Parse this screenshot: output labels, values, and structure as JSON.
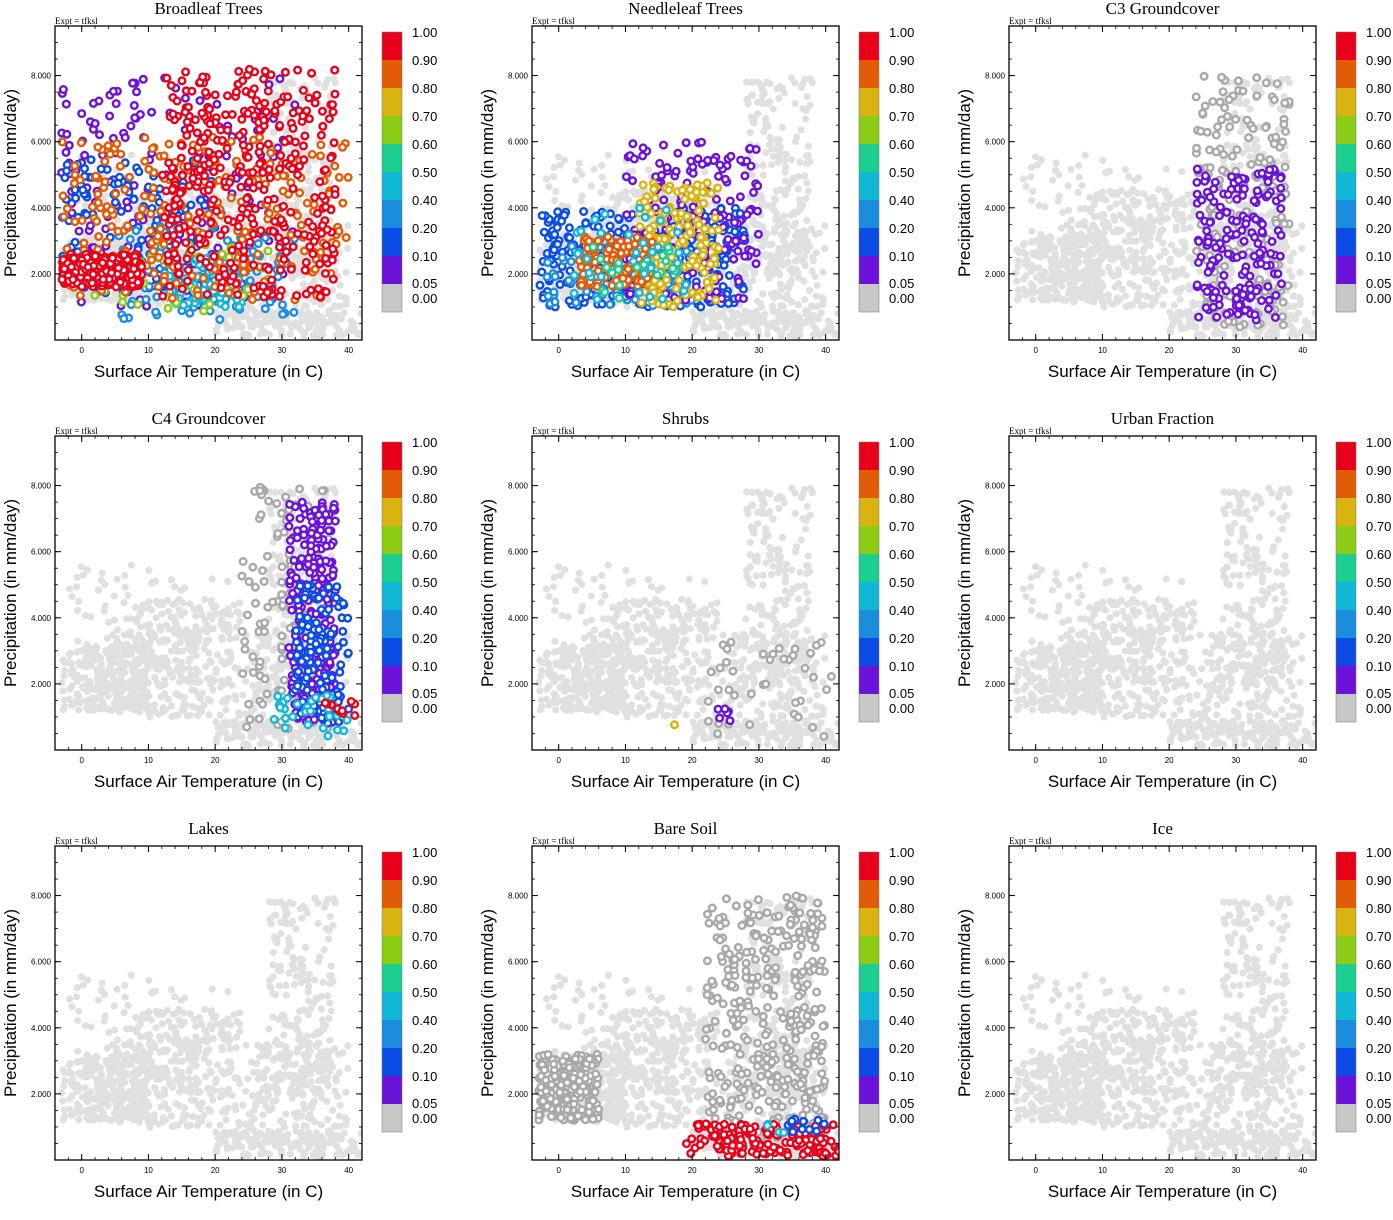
{
  "experiment_label": "Expt = tfksl",
  "chart_data": {
    "type": "scatter",
    "layout": "3x3 grid of scatter panels with colorbars",
    "xlabel": "Surface Air Temperature (in C)",
    "ylabel": "Precipitation (in mm/day)",
    "xlim": [
      -4,
      42
    ],
    "ylim": [
      0,
      9500
    ],
    "xticks": [
      0,
      10,
      20,
      30,
      40
    ],
    "xtick_labels": [
      "0",
      "10",
      "20",
      "30",
      "40"
    ],
    "yticks": [
      2000,
      4000,
      6000,
      8000
    ],
    "ytick_labels": [
      "2.000",
      "4.000",
      "6.000",
      "8.000"
    ],
    "color_levels": [
      "1.00",
      "0.90",
      "0.80",
      "0.70",
      "0.60",
      "0.50",
      "0.40",
      "0.20",
      "0.10",
      "0.05",
      "0.00"
    ],
    "color_scale": [
      "#e8001a",
      "#e25b06",
      "#d9b410",
      "#8ccc14",
      "#1ccf90",
      "#10b8d6",
      "#1a8ddf",
      "#0c4ce6",
      "#6a12d8",
      "#c8c8c8"
    ],
    "background_color": "#e0e0e0",
    "panels": [
      {
        "title": "Broadleaf Trees",
        "groups": [
          {
            "level": 8,
            "x": [
              -3,
              32
            ],
            "y": [
              1000,
              8000
            ],
            "count": 180
          },
          {
            "level": 7,
            "x": [
              -3,
              20
            ],
            "y": [
              1400,
              5500
            ],
            "count": 150
          },
          {
            "level": 6,
            "x": [
              5,
              32
            ],
            "y": [
              600,
              3500
            ],
            "count": 100
          },
          {
            "level": 5,
            "x": [
              13,
              24
            ],
            "y": [
              1000,
              2600
            ],
            "count": 80
          },
          {
            "level": 3,
            "x": [
              -3,
              28
            ],
            "y": [
              800,
              3000
            ],
            "count": 40
          },
          {
            "level": 1,
            "x": [
              -3,
              40
            ],
            "y": [
              1200,
              6200
            ],
            "count": 260
          },
          {
            "level": 0,
            "x": [
              -3,
              9
            ],
            "y": [
              1600,
              2600
            ],
            "count": 240
          },
          {
            "level": 0,
            "x": [
              12,
              38
            ],
            "y": [
              1200,
              8200
            ],
            "count": 380
          }
        ]
      },
      {
        "title": "Needleleaf Trees",
        "groups": [
          {
            "level": 7,
            "x": [
              -3,
              28
            ],
            "y": [
              1000,
              4000
            ],
            "count": 320
          },
          {
            "level": 6,
            "x": [
              -2,
              20
            ],
            "y": [
              1000,
              3000
            ],
            "count": 80
          },
          {
            "level": 8,
            "x": [
              10,
              30
            ],
            "y": [
              1200,
              6000
            ],
            "count": 180
          },
          {
            "level": 2,
            "x": [
              12,
              24
            ],
            "y": [
              1000,
              4800
            ],
            "count": 170
          },
          {
            "level": 1,
            "x": [
              3,
              14
            ],
            "y": [
              1600,
              3200
            ],
            "count": 120
          },
          {
            "level": 5,
            "x": [
              2,
              20
            ],
            "y": [
              1200,
              4000
            ],
            "count": 40
          },
          {
            "level": 4,
            "x": [
              3,
              18
            ],
            "y": [
              1200,
              3000
            ],
            "count": 20
          }
        ]
      },
      {
        "title": "C3 Groundcover",
        "groups": [
          {
            "level": 9,
            "x": [
              24,
              38
            ],
            "y": [
              400,
              8000
            ],
            "count": 200
          },
          {
            "level": 8,
            "x": [
              24,
              37
            ],
            "y": [
              600,
              5200
            ],
            "count": 180
          }
        ]
      },
      {
        "title": "C4 Groundcover",
        "groups": [
          {
            "level": 9,
            "x": [
              24,
              37
            ],
            "y": [
              400,
              8000
            ],
            "count": 130
          },
          {
            "level": 8,
            "x": [
              31,
              38
            ],
            "y": [
              800,
              7500
            ],
            "count": 250
          },
          {
            "level": 7,
            "x": [
              32,
              40
            ],
            "y": [
              800,
              5000
            ],
            "count": 120
          },
          {
            "level": 5,
            "x": [
              28,
              40
            ],
            "y": [
              300,
              1800
            ],
            "count": 30
          },
          {
            "level": 0,
            "x": [
              36,
              41
            ],
            "y": [
              1000,
              1500
            ],
            "count": 10
          }
        ]
      },
      {
        "title": "Shrubs",
        "groups": [
          {
            "level": 9,
            "x": [
              22,
              41
            ],
            "y": [
              400,
              3500
            ],
            "count": 40
          },
          {
            "level": 8,
            "x": [
              23,
              27
            ],
            "y": [
              700,
              1300
            ],
            "count": 6
          },
          {
            "level": 2,
            "x": [
              17,
              18
            ],
            "y": [
              600,
              800
            ],
            "count": 1
          }
        ]
      },
      {
        "title": "Urban Fraction",
        "groups": []
      },
      {
        "title": "Lakes",
        "groups": []
      },
      {
        "title": "Bare Soil",
        "groups": [
          {
            "level": 9,
            "x": [
              -3,
              6
            ],
            "y": [
              1200,
              3200
            ],
            "count": 220
          },
          {
            "level": 9,
            "x": [
              22,
              40
            ],
            "y": [
              600,
              8000
            ],
            "count": 360
          },
          {
            "level": 0,
            "x": [
              19,
              42
            ],
            "y": [
              100,
              1100
            ],
            "count": 160
          },
          {
            "level": 7,
            "x": [
              34,
              40
            ],
            "y": [
              800,
              1400
            ],
            "count": 12
          },
          {
            "level": 5,
            "x": [
              31,
              34
            ],
            "y": [
              800,
              1300
            ],
            "count": 4
          }
        ]
      },
      {
        "title": "Ice",
        "groups": []
      }
    ]
  }
}
